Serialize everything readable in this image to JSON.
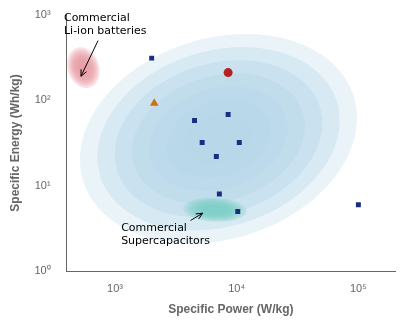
{
  "chart_data": {
    "type": "scatter",
    "log": true,
    "grid": false,
    "xlabel": "Specific Power (W/kg)",
    "ylabel": "Specific Energy (Wh/kg)",
    "xlim": [
      400,
      200000
    ],
    "ylim": [
      1,
      1000
    ],
    "xticks": [
      {
        "value": 1000,
        "label": "10³"
      },
      {
        "value": 10000,
        "label": "10⁴"
      },
      {
        "value": 100000,
        "label": "10⁵"
      }
    ],
    "yticks": [
      {
        "value": 1,
        "label": "10⁰"
      },
      {
        "value": 10,
        "label": "10¹"
      },
      {
        "value": 100,
        "label": "10²"
      },
      {
        "value": 1000,
        "label": "10³"
      }
    ],
    "series": [
      {
        "marker": "square",
        "color": "#1a2e80",
        "x": [
          2000,
          4500,
          5200,
          6800,
          8500,
          10500,
          7200,
          10200,
          100000
        ],
        "values": [
          310,
          58,
          32,
          22,
          68,
          32,
          8,
          5,
          6
        ]
      },
      {
        "marker": "circle",
        "color": "#b52020",
        "x": [
          8500
        ],
        "values": [
          210
        ]
      },
      {
        "marker": "triangle",
        "color": "#d07010",
        "x": [
          2100
        ],
        "values": [
          92
        ]
      }
    ],
    "regions": [
      {
        "center_log": [
          3.85,
          1.55
        ],
        "size_log": [
          2.1,
          2.6
        ],
        "angle": -35,
        "color": "#b8d8ea"
      },
      {
        "center_log": [
          3.82,
          0.72
        ],
        "size_log": [
          0.52,
          0.28
        ],
        "angle": -5,
        "color": "#80cfc8"
      },
      {
        "center_log": [
          2.74,
          2.38
        ],
        "size_log": [
          0.26,
          0.48
        ],
        "angle": 8,
        "color": "#e8a0a8"
      }
    ],
    "annotations": [
      {
        "text": "Commercial\nLi-ion batteries",
        "xy_log": [
          2.72,
          2.28
        ],
        "xytext_log": [
          2.58,
          2.72
        ]
      },
      {
        "text": "Commercial\nSupercapacitors",
        "xy_log": [
          3.72,
          0.68
        ],
        "xytext_log": [
          3.05,
          0.42
        ]
      }
    ]
  }
}
